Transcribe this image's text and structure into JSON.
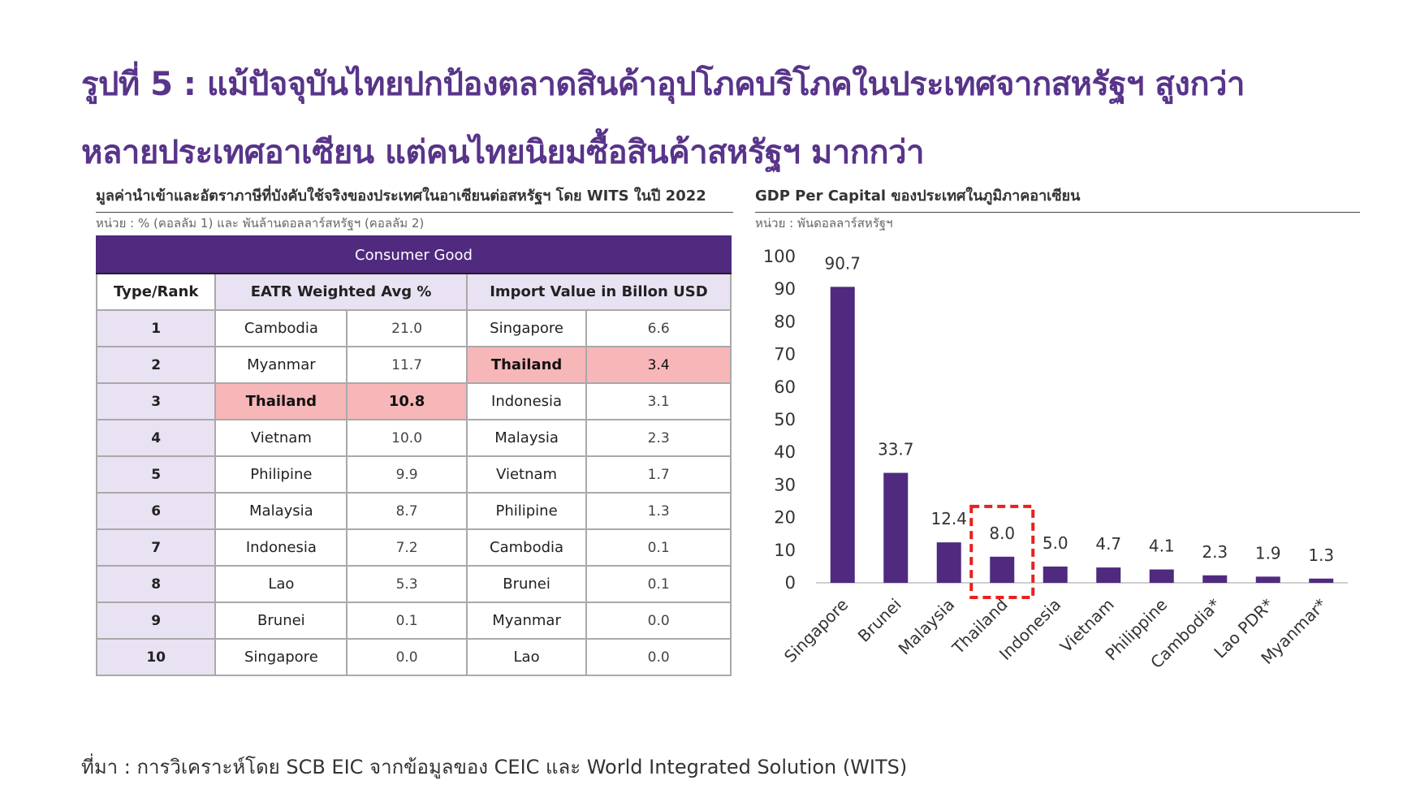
{
  "title_line1": "รูปที่ 5 : แม้ปัจจุบันไทยปกป้องตลาดสินค้าอุปโภคบริโภคในประเทศจากสหรัฐฯ สูงกว่า",
  "title_line2": "หลายประเทศอาเซียน แต่คนไทยนิยมซื้อสินค้าสหรัฐฯ มากกว่า",
  "table": {
    "title": "มูลค่านำเข้าและอัตราภาษีที่บังคับใช้จริงของประเทศในอาเซียนต่อสหรัฐฯ โดย WITS ในปี 2022",
    "unit": "หน่วย : % (คอลลัม 1) และ พันล้านดอลลาร์สหรัฐฯ (คอลลัม 2)",
    "banner": "Consumer Good",
    "headers": [
      "Type/Rank",
      "EATR Weighted Avg %",
      "Import Value in Billon USD"
    ],
    "rows": [
      {
        "rank": "1",
        "eatr_country": "Cambodia",
        "eatr_value": "21.0",
        "import_country": "Singapore",
        "import_value": "6.6"
      },
      {
        "rank": "2",
        "eatr_country": "Myanmar",
        "eatr_value": "11.7",
        "import_country": "Thailand",
        "import_value": "3.4"
      },
      {
        "rank": "3",
        "eatr_country": "Thailand",
        "eatr_value": "10.8",
        "import_country": "Indonesia",
        "import_value": "3.1"
      },
      {
        "rank": "4",
        "eatr_country": "Vietnam",
        "eatr_value": "10.0",
        "import_country": "Malaysia",
        "import_value": "2.3"
      },
      {
        "rank": "5",
        "eatr_country": "Philipine",
        "eatr_value": "9.9",
        "import_country": "Vietnam",
        "import_value": "1.7"
      },
      {
        "rank": "6",
        "eatr_country": "Malaysia",
        "eatr_value": "8.7",
        "import_country": "Philipine",
        "import_value": "1.3"
      },
      {
        "rank": "7",
        "eatr_country": "Indonesia",
        "eatr_value": "7.2",
        "import_country": "Cambodia",
        "import_value": "0.1"
      },
      {
        "rank": "8",
        "eatr_country": "Lao",
        "eatr_value": "5.3",
        "import_country": "Brunei",
        "import_value": "0.1"
      },
      {
        "rank": "9",
        "eatr_country": "Brunei",
        "eatr_value": "0.1",
        "import_country": "Myanmar",
        "import_value": "0.0"
      },
      {
        "rank": "10",
        "eatr_country": "Singapore",
        "eatr_value": "0.0",
        "import_country": "Lao",
        "import_value": "0.0"
      }
    ],
    "highlight_color": "#f7b6b8",
    "banner_color": "#4f2a7f"
  },
  "chart_title": "GDP Per Capital ของประเทศในภูมิภาคอาเซียน",
  "chart_unit": "หน่วย : พันดอลลาร์สหรัฐฯ",
  "chart_data": {
    "type": "bar",
    "title": "GDP Per Capital ของประเทศในภูมิภาคอาเซียน",
    "xlabel": "",
    "ylabel": "",
    "categories": [
      "Singapore",
      "Brunei",
      "Malaysia",
      "Thailand",
      "Indonesia",
      "Vietnam",
      "Philippine",
      "Cambodia*",
      "Lao PDR*",
      "Myanmar*"
    ],
    "values": [
      90.7,
      33.7,
      12.4,
      8.0,
      5.0,
      4.7,
      4.1,
      2.3,
      1.9,
      1.3
    ],
    "value_labels": [
      "90.7",
      "33.7",
      "12.4",
      "8.0",
      "5.0",
      "4.7",
      "4.1",
      "2.3",
      "1.9",
      "1.3"
    ],
    "yticks": [
      "0",
      "10",
      "20",
      "30",
      "40",
      "50",
      "60",
      "70",
      "80",
      "90",
      "100"
    ],
    "ylim": [
      0,
      100
    ],
    "grid": false,
    "bar_color": "#4f2a7f",
    "highlight_category": "Thailand",
    "highlight_color": "#e8211c"
  },
  "source": "ที่มา : การวิเคราะห์โดย SCB EIC จากข้อมูลของ CEIC และ World Integrated Solution (WITS)"
}
